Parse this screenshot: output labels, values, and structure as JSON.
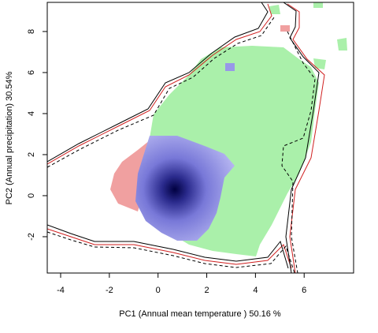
{
  "chart_data": {
    "type": "niche",
    "xlabel": "PC1 (Annual mean temperature ) 50.16 %",
    "ylabel": "PC2 (Annual precipitation) 30.54%",
    "xlim": [
      -4.55,
      8.03
    ],
    "ylim": [
      -3.77,
      9.42
    ],
    "xticks": [
      -4,
      -2,
      0,
      2,
      4,
      6
    ],
    "yticks": [
      -2,
      0,
      2,
      4,
      6,
      8
    ]
  }
}
